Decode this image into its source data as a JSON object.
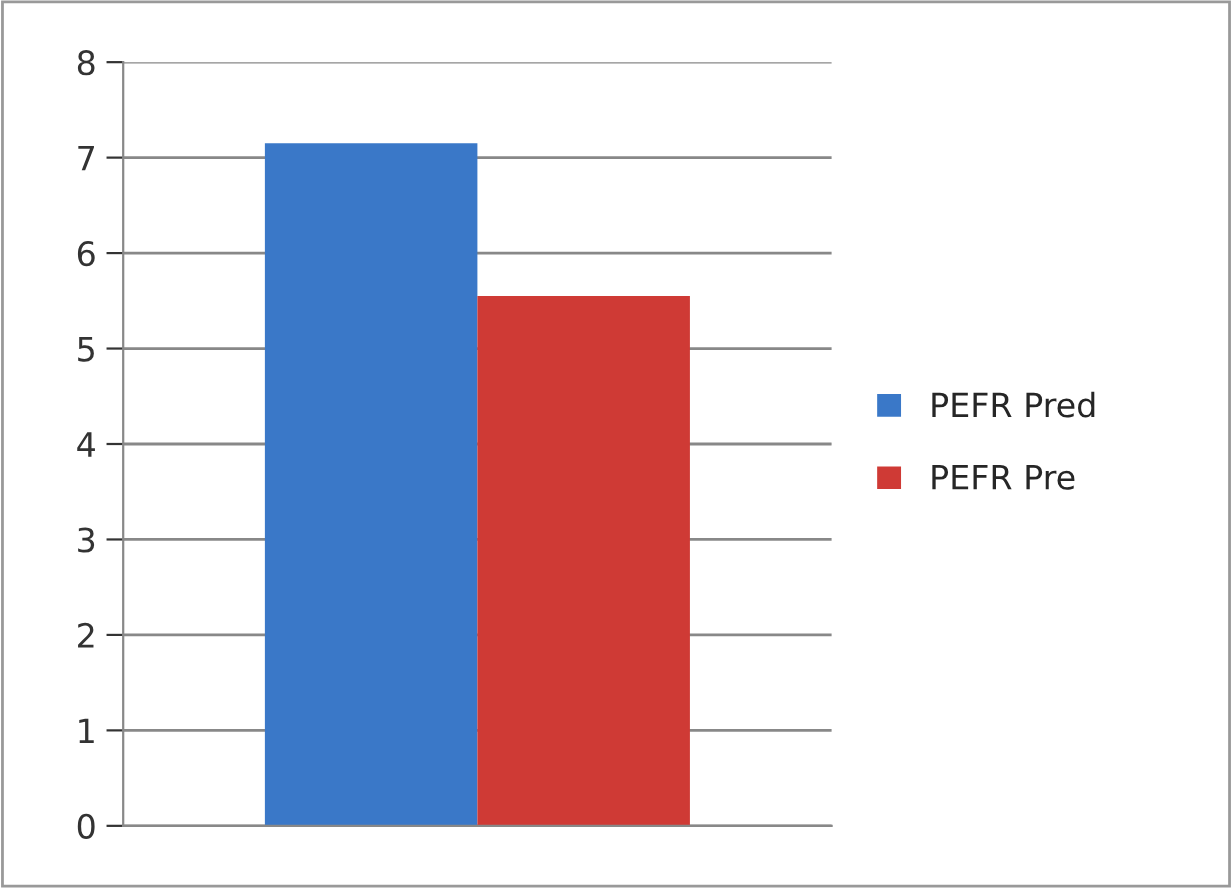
{
  "chart_data": {
    "type": "bar",
    "categories": [
      null
    ],
    "series": [
      {
        "name": "PEFR Pred",
        "color": "#3a78c8",
        "values": [
          7.15
        ]
      },
      {
        "name": "PEFR Pre",
        "color": "#cf3a35",
        "values": [
          5.55
        ]
      }
    ],
    "ylim": [
      0,
      8
    ],
    "yticks": [
      0,
      1,
      2,
      3,
      4,
      5,
      6,
      7,
      8
    ],
    "grid": "y",
    "legend": "right"
  }
}
